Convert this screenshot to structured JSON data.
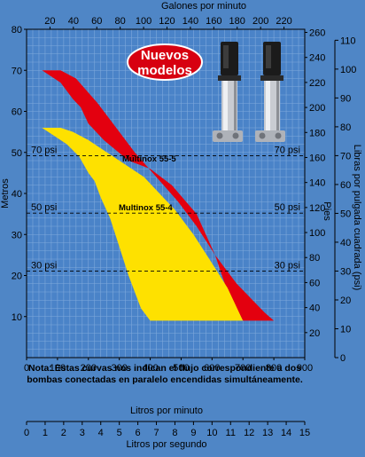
{
  "chart_data": {
    "type": "area",
    "title": "",
    "badge": [
      "Nuevos",
      "modelos"
    ],
    "note": [
      "Nota: Estas curvas nos indican el flujo correspondiente a dos",
      "bombas conectadas en paralelo encendidas simultáneamente."
    ],
    "axes": {
      "left": {
        "label": "Metros",
        "min": 0,
        "max": 80,
        "ticks": [
          10,
          20,
          30,
          40,
          50,
          60,
          70,
          80
        ]
      },
      "bottom": {
        "label": "Litros por minuto",
        "min": 0,
        "max": 900,
        "ticks": [
          0,
          100,
          200,
          300,
          400,
          500,
          600,
          700,
          800,
          900
        ]
      },
      "top": {
        "label": "Galones por minuto",
        "min": 0,
        "max": 237.75,
        "ticks": [
          20,
          40,
          60,
          80,
          100,
          120,
          140,
          160,
          180,
          200,
          220
        ]
      },
      "feet": {
        "label": "Pies",
        "min": 0,
        "max": 262.5,
        "ticks": [
          20,
          40,
          60,
          80,
          100,
          120,
          140,
          160,
          180,
          200,
          220,
          240,
          260
        ]
      },
      "psi": {
        "label": "Libras por pulgada cuadrada (psi)",
        "min": 0,
        "max": 113.8,
        "ticks": [
          0,
          10,
          20,
          30,
          40,
          50,
          60,
          70,
          80,
          90,
          100,
          110
        ]
      },
      "lps": {
        "label": "Litros por segundo",
        "min": 0,
        "max": 15,
        "ticks": [
          0,
          1,
          2,
          3,
          4,
          5,
          6,
          7,
          8,
          9,
          10,
          11,
          12,
          13,
          14,
          15
        ]
      }
    },
    "reference_lines": [
      {
        "label": "70 psi",
        "y": 49.2
      },
      {
        "label": "50 psi",
        "y": 35.2
      },
      {
        "label": "30 psi",
        "y": 21.1
      }
    ],
    "series": [
      {
        "name": "Multinox 55-5",
        "color": "#e3000f",
        "outline": [
          [
            50,
            70
          ],
          [
            110,
            70
          ],
          [
            160,
            68
          ],
          [
            230,
            62
          ],
          [
            300,
            55
          ],
          [
            350,
            50
          ],
          [
            420,
            44
          ],
          [
            490,
            38
          ],
          [
            550,
            32
          ],
          [
            610,
            25
          ],
          [
            680,
            18
          ],
          [
            770,
            11
          ],
          [
            800,
            9
          ],
          [
            700,
            9
          ],
          [
            650,
            16
          ],
          [
            610,
            25
          ],
          [
            550,
            35
          ],
          [
            470,
            42
          ],
          [
            400,
            46
          ],
          [
            330,
            48
          ],
          [
            250,
            53
          ],
          [
            200,
            57
          ],
          [
            175,
            61
          ],
          [
            150,
            63
          ],
          [
            110,
            67
          ]
        ]
      },
      {
        "name": "Multinox 55-4",
        "color": "#fee100",
        "outline": [
          [
            50,
            56
          ],
          [
            110,
            56
          ],
          [
            150,
            55
          ],
          [
            200,
            53
          ],
          [
            300,
            48
          ],
          [
            380,
            44
          ],
          [
            430,
            40
          ],
          [
            480,
            36
          ],
          [
            540,
            30
          ],
          [
            600,
            23
          ],
          [
            650,
            17
          ],
          [
            700,
            9
          ],
          [
            400,
            9
          ],
          [
            370,
            12
          ],
          [
            330,
            20
          ],
          [
            300,
            27
          ],
          [
            270,
            34
          ],
          [
            240,
            39
          ],
          [
            220,
            43
          ],
          [
            200,
            45
          ],
          [
            170,
            49
          ],
          [
            130,
            52
          ],
          [
            90,
            54
          ]
        ]
      }
    ],
    "colors": {
      "background": "#4f86c6",
      "plot_bg": "#4a83c8",
      "grid": "#7fa9db",
      "badge": "#d70010"
    }
  }
}
